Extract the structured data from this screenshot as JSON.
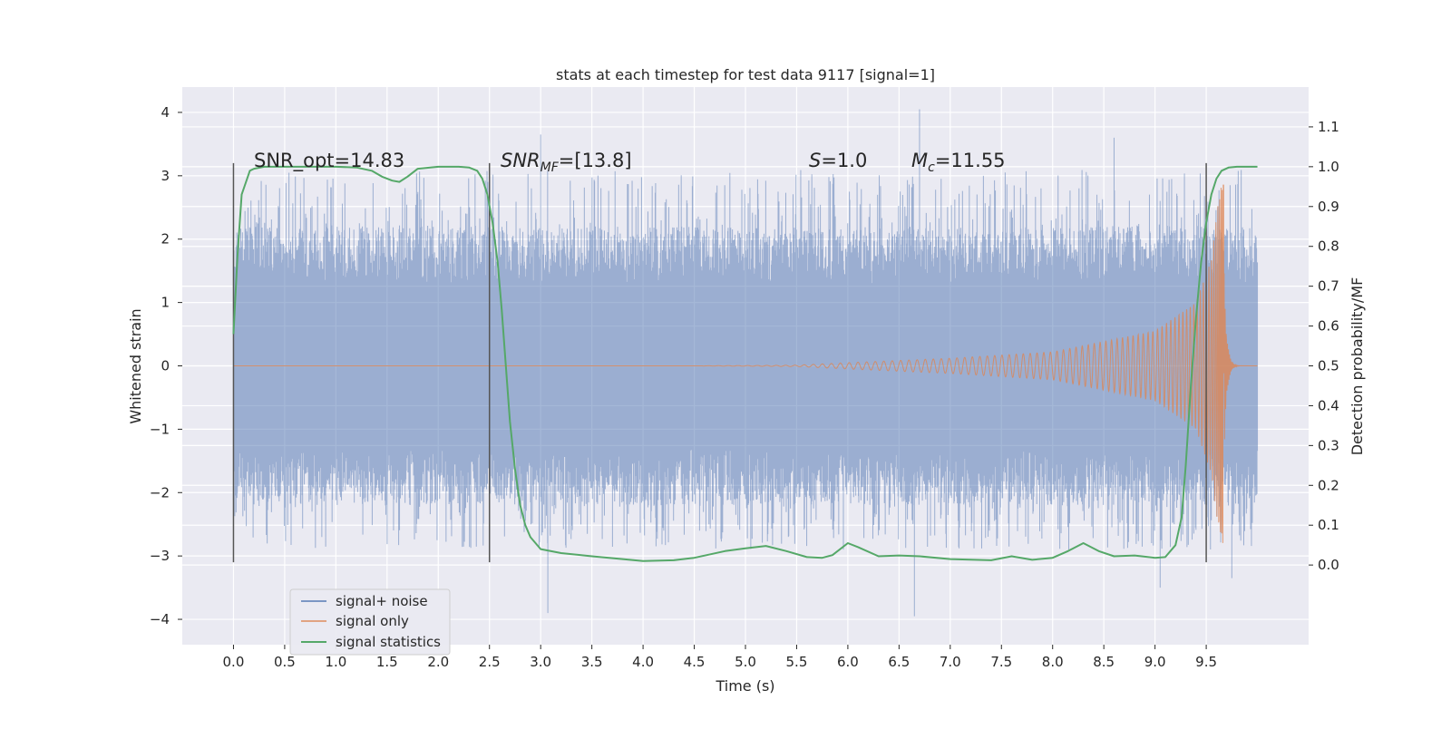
{
  "chart_data": {
    "type": "line",
    "title": "stats at each timestep for test data 9117 [signal=1]",
    "xlabel": "Time (s)",
    "ylabel_left": "Whitened strain",
    "ylabel_right": "Detection probability/MF",
    "xlim": [
      -0.5,
      10.5
    ],
    "ylim_left": [
      -4.4,
      4.4
    ],
    "ylim_right": [
      -0.2,
      1.2
    ],
    "x_ticks": [
      "0.0",
      "0.5",
      "1.0",
      "1.5",
      "2.0",
      "2.5",
      "3.0",
      "3.5",
      "4.0",
      "4.5",
      "5.0",
      "5.5",
      "6.0",
      "6.5",
      "7.0",
      "7.5",
      "8.0",
      "8.5",
      "9.0",
      "9.5"
    ],
    "y_ticks_left": [
      "4",
      "3",
      "2",
      "1",
      "0",
      "−1",
      "−2",
      "−3",
      "−4"
    ],
    "y_ticks_right": [
      "1.1",
      "1.0",
      "0.9",
      "0.8",
      "0.7",
      "0.6",
      "0.5",
      "0.4",
      "0.3",
      "0.2",
      "0.1",
      "0.0"
    ],
    "grid": true,
    "legend_position": "lower-left",
    "annotations": {
      "snr_opt": "SNR_opt=14.83",
      "snr_mf_base": "SNR",
      "snr_mf_sub": "MF",
      "snr_mf_value": "=[13.8]",
      "s_label": "S",
      "s_value": "=1.0",
      "mc_base": "M",
      "mc_sub": "c",
      "mc_value": "=11.55"
    },
    "vertical_markers_x": [
      0.0,
      2.5,
      9.5
    ],
    "vertical_markers_range": [
      -3.1,
      3.2
    ],
    "series": [
      {
        "name": "signal+ noise",
        "color": "#4c72b0",
        "axis": "left",
        "envelope": {
          "x_range": [
            0.0,
            10.0
          ],
          "core_band": [
            -1.3,
            1.3
          ],
          "typical_peak_max": [
            2.2,
            3.1
          ],
          "typical_peak_min": [
            -2.9,
            -2.2
          ],
          "extreme_peaks": [
            [
              3.0,
              3.65
            ],
            [
              3.07,
              -3.9
            ],
            [
              6.7,
              4.05
            ],
            [
              6.65,
              -3.95
            ],
            [
              8.6,
              3.6
            ],
            [
              9.05,
              -3.5
            ],
            [
              9.75,
              -3.35
            ]
          ]
        }
      },
      {
        "name": "signal only",
        "color": "#dd8452",
        "axis": "left",
        "chirp": {
          "x_range": [
            0.0,
            9.67
          ],
          "merger_time": 9.67,
          "envelope_points": [
            [
              5.5,
              0.01
            ],
            [
              6.0,
              0.05
            ],
            [
              7.0,
              0.12
            ],
            [
              8.0,
              0.22
            ],
            [
              9.0,
              0.55
            ],
            [
              9.4,
              1.0
            ],
            [
              9.55,
              1.7
            ],
            [
              9.62,
              2.6
            ],
            [
              9.655,
              2.95
            ]
          ]
        }
      },
      {
        "name": "signal statistics",
        "color": "#55a868",
        "axis": "right",
        "x": [
          0.0,
          0.04,
          0.08,
          0.12,
          0.16,
          0.2,
          0.3,
          0.5,
          0.8,
          1.0,
          1.2,
          1.35,
          1.45,
          1.55,
          1.62,
          1.7,
          1.8,
          2.0,
          2.2,
          2.3,
          2.38,
          2.43,
          2.48,
          2.53,
          2.58,
          2.62,
          2.66,
          2.7,
          2.75,
          2.8,
          2.85,
          2.9,
          3.0,
          3.2,
          3.5,
          3.8,
          4.0,
          4.3,
          4.5,
          4.8,
          5.0,
          5.2,
          5.4,
          5.6,
          5.75,
          5.85,
          6.0,
          6.1,
          6.3,
          6.5,
          6.7,
          7.0,
          7.4,
          7.6,
          7.8,
          8.0,
          8.15,
          8.3,
          8.45,
          8.6,
          8.8,
          9.0,
          9.1,
          9.2,
          9.26,
          9.3,
          9.35,
          9.4,
          9.45,
          9.5,
          9.55,
          9.6,
          9.65,
          9.72,
          9.8,
          9.9,
          10.0
        ],
        "y": [
          0.58,
          0.78,
          0.93,
          0.96,
          0.99,
          0.995,
          1.0,
          1.0,
          1.0,
          1.0,
          0.998,
          0.99,
          0.975,
          0.965,
          0.962,
          0.975,
          0.995,
          1.0,
          1.0,
          0.998,
          0.99,
          0.97,
          0.93,
          0.86,
          0.76,
          0.64,
          0.5,
          0.36,
          0.24,
          0.15,
          0.1,
          0.07,
          0.04,
          0.03,
          0.022,
          0.015,
          0.01,
          0.012,
          0.018,
          0.035,
          0.042,
          0.048,
          0.035,
          0.02,
          0.018,
          0.025,
          0.055,
          0.045,
          0.022,
          0.024,
          0.022,
          0.015,
          0.012,
          0.022,
          0.013,
          0.018,
          0.035,
          0.055,
          0.035,
          0.022,
          0.024,
          0.018,
          0.02,
          0.05,
          0.12,
          0.25,
          0.45,
          0.62,
          0.76,
          0.86,
          0.93,
          0.97,
          0.99,
          0.998,
          1.0,
          1.0,
          1.0
        ]
      }
    ]
  }
}
